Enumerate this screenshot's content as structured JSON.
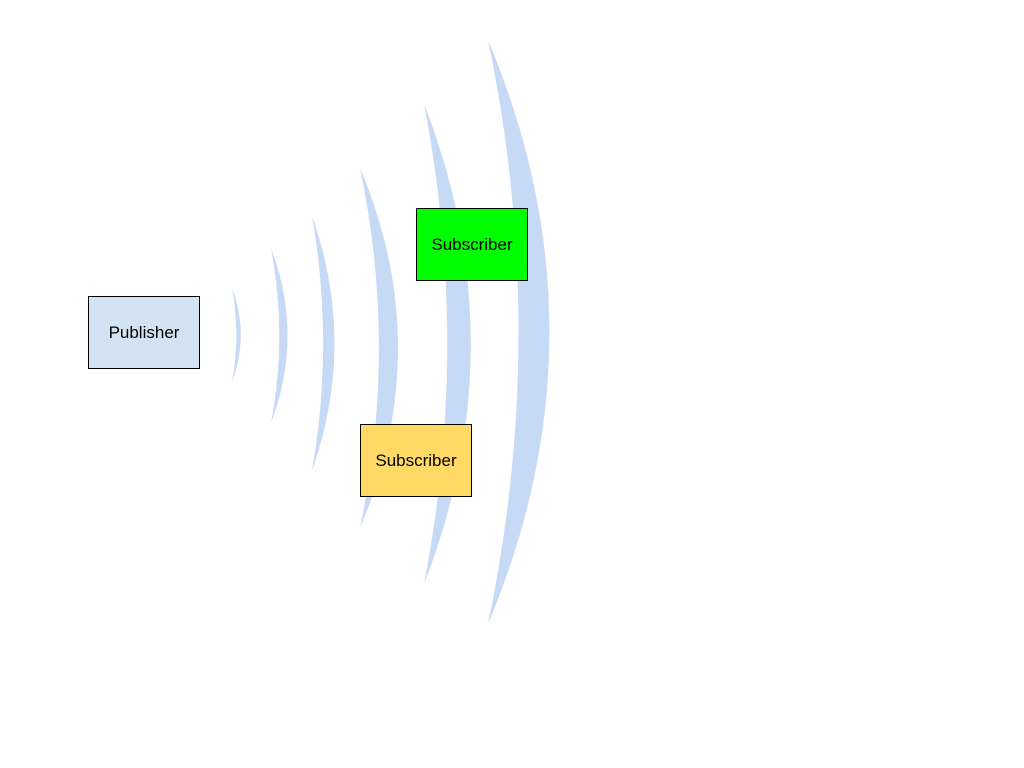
{
  "diagram": {
    "wave_color": "#c6d9f5",
    "publisher": {
      "label": "Publisher",
      "fill": "#d3e3f3"
    },
    "subscribers": [
      {
        "label": "Subscriber",
        "fill": "#00ff00"
      },
      {
        "label": "Subscriber",
        "fill": "#ffd966"
      }
    ]
  }
}
